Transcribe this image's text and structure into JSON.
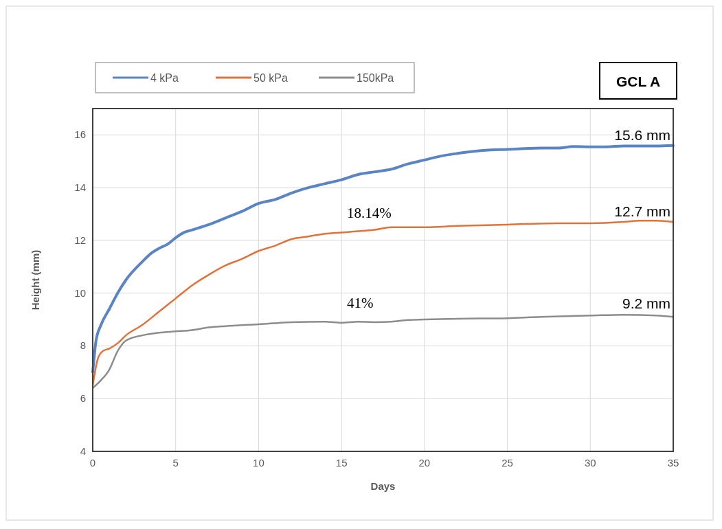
{
  "chart_data": {
    "type": "line",
    "title": "GCL A",
    "xlabel": "Days",
    "ylabel": "Height (mm)",
    "xlim": [
      0,
      35
    ],
    "xticks": [
      0,
      5,
      10,
      15,
      20,
      25,
      30,
      35
    ],
    "ylim": [
      4,
      17
    ],
    "yticks": [
      4,
      6,
      8,
      10,
      12,
      14,
      16
    ],
    "grid": true,
    "legend": "top left",
    "marker": "none",
    "line_style": "solid",
    "series": [
      {
        "name": "4 kPa",
        "color": "#5b84c4",
        "x": [
          0,
          0.2,
          0.5,
          1,
          1.5,
          2,
          3,
          3.5,
          4,
          4.5,
          5,
          5.5,
          6,
          7,
          8,
          9,
          10,
          11,
          12,
          13,
          14,
          15,
          16,
          17,
          18,
          19,
          20,
          21,
          22,
          23,
          24,
          25,
          26,
          27,
          28,
          29,
          30,
          31,
          32,
          33,
          34,
          35
        ],
        "values": [
          7.0,
          8.2,
          8.8,
          9.4,
          10.0,
          10.5,
          11.2,
          11.5,
          11.7,
          11.85,
          12.1,
          12.3,
          12.4,
          12.6,
          12.85,
          13.1,
          13.4,
          13.55,
          13.8,
          14.0,
          14.15,
          14.3,
          14.5,
          14.6,
          14.7,
          14.9,
          15.05,
          15.2,
          15.3,
          15.38,
          15.43,
          15.45,
          15.48,
          15.5,
          15.5,
          15.56,
          15.55,
          15.55,
          15.58,
          15.58,
          15.58,
          15.6
        ]
      },
      {
        "name": "50 kPa",
        "color": "#e0723a",
        "x": [
          0,
          0.3,
          0.6,
          1,
          1.5,
          2,
          3,
          4,
          5,
          6,
          7,
          8,
          9,
          10,
          11,
          12,
          13,
          14,
          15,
          16,
          17,
          18,
          19,
          20,
          22,
          25,
          28,
          30,
          32,
          33,
          34,
          35
        ],
        "values": [
          6.5,
          7.5,
          7.8,
          7.9,
          8.1,
          8.4,
          8.8,
          9.3,
          9.8,
          10.3,
          10.7,
          11.05,
          11.3,
          11.6,
          11.8,
          12.05,
          12.15,
          12.25,
          12.3,
          12.35,
          12.4,
          12.5,
          12.5,
          12.5,
          12.55,
          12.6,
          12.65,
          12.65,
          12.7,
          12.75,
          12.75,
          12.7
        ]
      },
      {
        "name": "150kPa",
        "color": "#8c8c8c",
        "x": [
          0,
          0.5,
          1,
          1.5,
          2,
          3,
          4,
          5,
          6,
          7,
          8,
          10,
          12,
          14,
          15,
          16,
          17,
          18,
          19,
          20,
          22,
          25,
          27,
          30,
          32,
          34,
          35
        ],
        "values": [
          6.4,
          6.7,
          7.1,
          7.8,
          8.2,
          8.4,
          8.5,
          8.55,
          8.6,
          8.7,
          8.75,
          8.82,
          8.9,
          8.92,
          8.88,
          8.92,
          8.9,
          8.92,
          8.98,
          9.0,
          9.03,
          9.05,
          9.1,
          9.15,
          9.18,
          9.15,
          9.1
        ]
      }
    ],
    "annotations": [
      {
        "text": "15.6 mm",
        "y": 15.6
      },
      {
        "text": "12.7 mm",
        "y": 12.7
      },
      {
        "text": "9.2 mm",
        "y": 9.2
      },
      "18.14%",
      "41%"
    ]
  }
}
